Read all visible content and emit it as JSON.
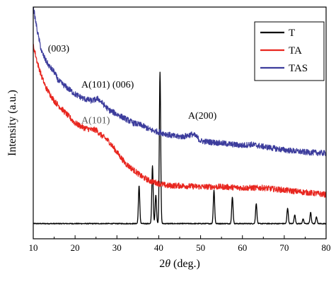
{
  "chart_data": {
    "type": "line",
    "xlabel": "2θ (deg.)",
    "ylabel": "Intensity (a.u.)",
    "xlim": [
      10,
      80
    ],
    "xticks": [
      10,
      20,
      30,
      40,
      50,
      60,
      70,
      80
    ],
    "ylim": [
      0,
      100
    ],
    "y_ticks_labeled": false,
    "grid": false,
    "legend": {
      "placement": "top-right",
      "entries": [
        {
          "label": "T",
          "color": "#000000"
        },
        {
          "label": "TA",
          "color": "#e8261f"
        },
        {
          "label": "TAS",
          "color": "#3c3c9c"
        }
      ]
    },
    "series": [
      {
        "name": "T",
        "color": "#000000",
        "baseline": 3,
        "peaks": [
          {
            "x": 35.3,
            "h": 17
          },
          {
            "x": 38.5,
            "h": 26
          },
          {
            "x": 39.3,
            "h": 13
          },
          {
            "x": 40.3,
            "h": 68
          },
          {
            "x": 53.2,
            "h": 15
          },
          {
            "x": 57.6,
            "h": 12
          },
          {
            "x": 63.3,
            "h": 9
          },
          {
            "x": 70.8,
            "h": 7
          },
          {
            "x": 72.5,
            "h": 4
          },
          {
            "x": 74.5,
            "h": 2
          },
          {
            "x": 76.3,
            "h": 5
          },
          {
            "x": 77.7,
            "h": 3
          }
        ]
      },
      {
        "name": "TA",
        "color": "#e8261f",
        "points": [
          [
            10,
            83
          ],
          [
            11,
            75
          ],
          [
            12,
            69
          ],
          [
            13,
            64
          ],
          [
            14,
            61
          ],
          [
            15,
            58
          ],
          [
            16,
            56
          ],
          [
            18,
            52
          ],
          [
            20,
            48
          ],
          [
            22,
            46
          ],
          [
            24,
            45
          ],
          [
            25,
            45
          ],
          [
            26,
            43
          ],
          [
            28,
            40
          ],
          [
            30,
            35
          ],
          [
            32,
            30
          ],
          [
            34,
            27
          ],
          [
            36,
            24
          ],
          [
            38,
            22
          ],
          [
            40,
            21
          ],
          [
            42,
            20
          ],
          [
            45,
            20
          ],
          [
            50,
            19.5
          ],
          [
            55,
            19.5
          ],
          [
            60,
            19
          ],
          [
            65,
            19
          ],
          [
            70,
            18
          ],
          [
            75,
            17
          ],
          [
            80,
            16
          ]
        ]
      },
      {
        "name": "TAS",
        "color": "#3c3c9c",
        "points": [
          [
            10,
            100
          ],
          [
            11,
            89
          ],
          [
            12,
            80
          ],
          [
            13,
            76
          ],
          [
            14,
            73
          ],
          [
            15,
            71
          ],
          [
            16,
            67
          ],
          [
            18,
            64
          ],
          [
            20,
            61
          ],
          [
            22,
            59
          ],
          [
            24,
            58
          ],
          [
            25.5,
            59
          ],
          [
            27,
            56
          ],
          [
            28,
            54
          ],
          [
            30,
            52
          ],
          [
            32,
            50
          ],
          [
            34,
            48
          ],
          [
            36,
            47
          ],
          [
            38,
            45
          ],
          [
            40,
            44
          ],
          [
            42,
            43
          ],
          [
            44,
            42
          ],
          [
            46,
            42
          ],
          [
            48,
            43
          ],
          [
            49,
            42
          ],
          [
            50,
            40
          ],
          [
            55,
            39
          ],
          [
            60,
            38
          ],
          [
            62,
            38.5
          ],
          [
            65,
            37.5
          ],
          [
            70,
            36
          ],
          [
            75,
            35
          ],
          [
            80,
            34.5
          ]
        ]
      }
    ],
    "annotations": [
      {
        "text": "(003)",
        "x": 13.5,
        "y": 80,
        "color": "#000000"
      },
      {
        "text": "A(101) (006)",
        "x": 21.5,
        "y": 64,
        "color": "#000000"
      },
      {
        "text": "A(101)",
        "x": 21.5,
        "y": 48,
        "color": "#555555"
      },
      {
        "text": "A(200)",
        "x": 47,
        "y": 50,
        "color": "#000000"
      }
    ]
  }
}
